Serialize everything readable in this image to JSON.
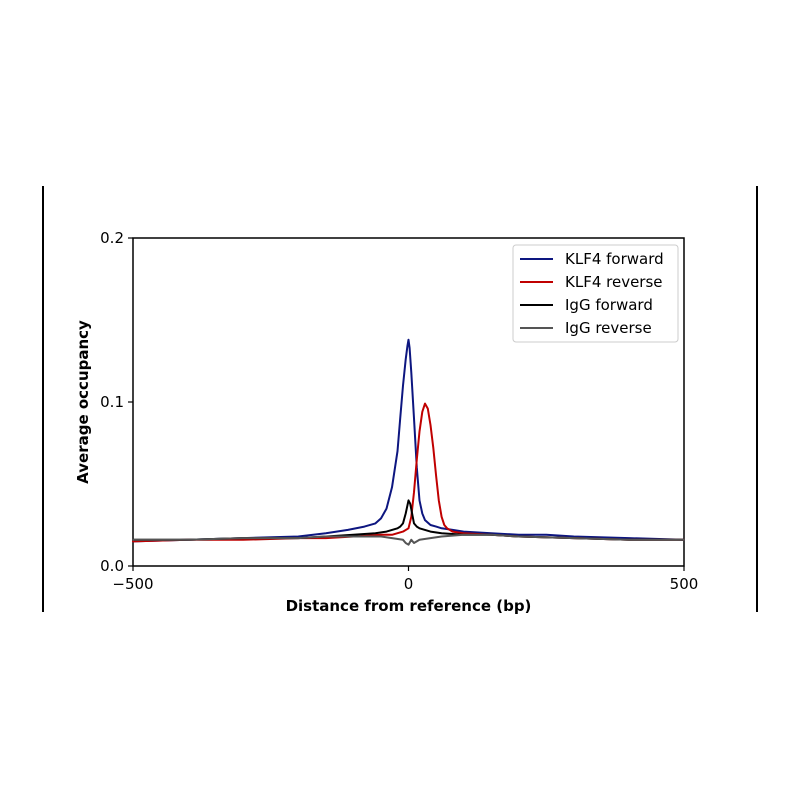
{
  "chart_data": {
    "type": "line",
    "xlabel": "Distance from reference (bp)",
    "ylabel": "Average occupancy",
    "xlim": [
      -500,
      500
    ],
    "ylim": [
      0.0,
      0.2
    ],
    "xticks": [
      -500,
      0,
      500
    ],
    "xtick_labels": [
      "−500",
      "0",
      "500"
    ],
    "yticks": [
      0.0,
      0.1,
      0.2
    ],
    "ytick_labels": [
      "0.0",
      "0.1",
      "0.2"
    ],
    "grid": false,
    "legend_position": "top-right",
    "series": [
      {
        "name": "KLF4 forward",
        "color": "#0d1680",
        "x": [
          -500,
          -400,
          -300,
          -200,
          -150,
          -110,
          -80,
          -60,
          -50,
          -40,
          -30,
          -20,
          -15,
          -10,
          -5,
          -2,
          0,
          2,
          5,
          10,
          15,
          20,
          25,
          30,
          40,
          50,
          60,
          80,
          100,
          150,
          200,
          250,
          300,
          400,
          500
        ],
        "y": [
          0.015,
          0.016,
          0.017,
          0.018,
          0.02,
          0.022,
          0.024,
          0.026,
          0.029,
          0.035,
          0.048,
          0.07,
          0.09,
          0.11,
          0.126,
          0.134,
          0.138,
          0.133,
          0.118,
          0.09,
          0.06,
          0.04,
          0.032,
          0.028,
          0.025,
          0.024,
          0.023,
          0.022,
          0.021,
          0.02,
          0.019,
          0.019,
          0.018,
          0.017,
          0.016
        ]
      },
      {
        "name": "KLF4 reverse",
        "color": "#c00000",
        "x": [
          -500,
          -400,
          -300,
          -200,
          -150,
          -100,
          -50,
          -30,
          -20,
          -10,
          0,
          5,
          10,
          15,
          20,
          25,
          30,
          35,
          40,
          45,
          50,
          55,
          60,
          65,
          70,
          80,
          100,
          150,
          200,
          300,
          400,
          500
        ],
        "y": [
          0.015,
          0.016,
          0.016,
          0.017,
          0.017,
          0.018,
          0.019,
          0.019,
          0.02,
          0.021,
          0.023,
          0.03,
          0.045,
          0.065,
          0.082,
          0.094,
          0.099,
          0.096,
          0.086,
          0.072,
          0.055,
          0.04,
          0.03,
          0.025,
          0.023,
          0.021,
          0.02,
          0.019,
          0.018,
          0.017,
          0.016,
          0.016
        ]
      },
      {
        "name": "IgG forward",
        "color": "#000000",
        "x": [
          -500,
          -400,
          -300,
          -200,
          -150,
          -100,
          -60,
          -40,
          -30,
          -20,
          -15,
          -10,
          -5,
          0,
          3,
          6,
          10,
          15,
          20,
          30,
          40,
          60,
          100,
          150,
          200,
          300,
          400,
          500
        ],
        "y": [
          0.016,
          0.016,
          0.017,
          0.017,
          0.018,
          0.019,
          0.02,
          0.021,
          0.022,
          0.023,
          0.024,
          0.026,
          0.032,
          0.04,
          0.038,
          0.033,
          0.026,
          0.024,
          0.023,
          0.022,
          0.021,
          0.02,
          0.019,
          0.019,
          0.018,
          0.017,
          0.016,
          0.016
        ]
      },
      {
        "name": "IgG reverse",
        "color": "#555555",
        "x": [
          -500,
          -400,
          -300,
          -200,
          -150,
          -100,
          -50,
          -30,
          -10,
          -5,
          0,
          5,
          10,
          20,
          40,
          60,
          100,
          150,
          200,
          300,
          400,
          500
        ],
        "y": [
          0.016,
          0.016,
          0.017,
          0.017,
          0.018,
          0.018,
          0.018,
          0.017,
          0.016,
          0.014,
          0.013,
          0.016,
          0.014,
          0.016,
          0.017,
          0.018,
          0.019,
          0.019,
          0.018,
          0.017,
          0.016,
          0.016
        ]
      }
    ]
  }
}
